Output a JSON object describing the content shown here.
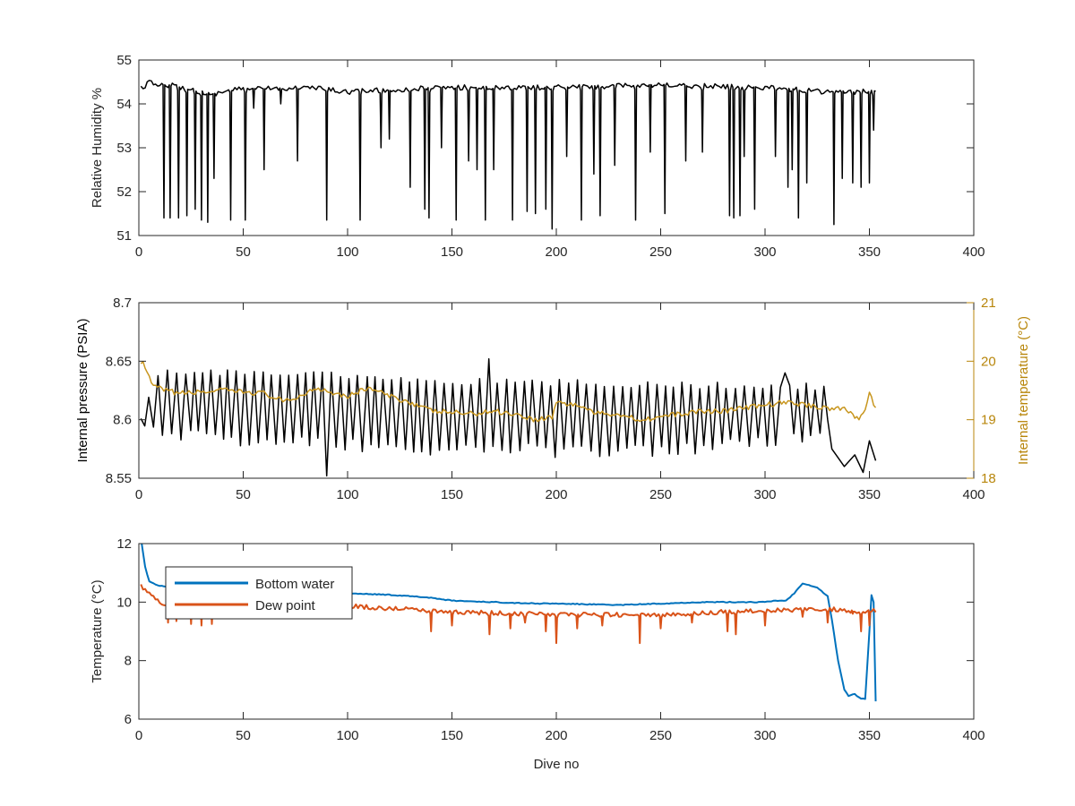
{
  "colors": {
    "black_series": "#000000",
    "internal_temperature": "#C8961E",
    "bottom_water": "#0072BD",
    "dew_point": "#D95319",
    "axis": "#262626",
    "right_axis": "#B8860B"
  },
  "chart_data": [
    {
      "type": "line",
      "xlabel": "",
      "ylabel": "Relative Humidity %",
      "xlim": [
        0,
        400
      ],
      "ylim": [
        51,
        55
      ],
      "xticks": [
        0,
        50,
        100,
        150,
        200,
        250,
        300,
        350,
        400
      ],
      "yticks": [
        51,
        52,
        53,
        54,
        55
      ],
      "grid": false,
      "series": [
        {
          "name": "",
          "color": "#000000",
          "x_range": [
            1,
            353
          ],
          "baseline": [
            [
              0,
              54.35
            ],
            [
              5,
              54.5
            ],
            [
              15,
              54.45
            ],
            [
              35,
              54.25
            ],
            [
              45,
              54.35
            ],
            [
              80,
              54.4
            ],
            [
              100,
              54.3
            ],
            [
              150,
              54.4
            ],
            [
              200,
              54.4
            ],
            [
              250,
              54.45
            ],
            [
              300,
              54.4
            ],
            [
              330,
              54.3
            ],
            [
              353,
              54.3
            ]
          ],
          "dips": [
            [
              12,
              51.4
            ],
            [
              15,
              51.4
            ],
            [
              19,
              51.4
            ],
            [
              23,
              51.45
            ],
            [
              27,
              51.6
            ],
            [
              30,
              51.35
            ],
            [
              33,
              51.3
            ],
            [
              36,
              52.3
            ],
            [
              44,
              51.35
            ],
            [
              51,
              51.35
            ],
            [
              55,
              53.9
            ],
            [
              60,
              52.5
            ],
            [
              68,
              54.0
            ],
            [
              76,
              52.7
            ],
            [
              90,
              51.35
            ],
            [
              106,
              51.35
            ],
            [
              116,
              53.0
            ],
            [
              120,
              53.2
            ],
            [
              130,
              52.1
            ],
            [
              137,
              51.6
            ],
            [
              139,
              51.4
            ],
            [
              145,
              53.0
            ],
            [
              152,
              51.35
            ],
            [
              158,
              52.7
            ],
            [
              162,
              52.5
            ],
            [
              166,
              51.35
            ],
            [
              170,
              52.5
            ],
            [
              179,
              51.35
            ],
            [
              186,
              51.55
            ],
            [
              190,
              51.5
            ],
            [
              195,
              51.6
            ],
            [
              198,
              51.15
            ],
            [
              205,
              52.8
            ],
            [
              212,
              51.35
            ],
            [
              218,
              52.4
            ],
            [
              221,
              51.45
            ],
            [
              228,
              52.6
            ],
            [
              238,
              51.35
            ],
            [
              245,
              52.9
            ],
            [
              252,
              51.5
            ],
            [
              262,
              52.7
            ],
            [
              270,
              52.9
            ],
            [
              283,
              51.45
            ],
            [
              285,
              51.4
            ],
            [
              288,
              51.45
            ],
            [
              290,
              52.8
            ],
            [
              295,
              51.6
            ],
            [
              305,
              52.8
            ],
            [
              311,
              52.1
            ],
            [
              313,
              52.5
            ],
            [
              316,
              51.4
            ],
            [
              320,
              52.2
            ],
            [
              333,
              51.25
            ],
            [
              337,
              52.3
            ],
            [
              342,
              52.2
            ],
            [
              346,
              52.1
            ],
            [
              350,
              52.2
            ],
            [
              352,
              53.4
            ]
          ]
        }
      ]
    },
    {
      "type": "line",
      "xlabel": "",
      "ylabel": "Internal pressure (PSIA)",
      "y2label": "Internal temperature (°C)",
      "xlim": [
        0,
        400
      ],
      "ylim": [
        8.55,
        8.7
      ],
      "y2lim": [
        18,
        21
      ],
      "xticks": [
        0,
        50,
        100,
        150,
        200,
        250,
        300,
        350,
        400
      ],
      "yticks": [
        8.55,
        8.6,
        8.65,
        8.7
      ],
      "y2ticks": [
        18,
        19,
        20,
        21
      ],
      "grid": false,
      "series": [
        {
          "name": "",
          "axis": "left",
          "color": "#000000",
          "x_range": [
            1,
            353
          ],
          "oscillation_period": 4.2,
          "top_trend": [
            [
              0,
              8.6
            ],
            [
              10,
              8.64
            ],
            [
              80,
              8.64
            ],
            [
              150,
              8.633
            ],
            [
              250,
              8.63
            ],
            [
              330,
              8.628
            ]
          ],
          "bottom_trend": [
            [
              0,
              8.59
            ],
            [
              10,
              8.587
            ],
            [
              80,
              8.58
            ],
            [
              150,
              8.575
            ],
            [
              250,
              8.572
            ],
            [
              330,
              8.585
            ]
          ],
          "spikes": [
            [
              83,
              8.667
            ],
            [
              85,
              8.66
            ],
            [
              90,
              8.552
            ],
            [
              168,
              8.652
            ],
            [
              310,
              8.64
            ]
          ],
          "tail": [
            [
              330,
              8.6
            ],
            [
              332,
              8.575
            ],
            [
              338,
              8.56
            ],
            [
              343,
              8.57
            ],
            [
              347,
              8.555
            ],
            [
              350,
              8.582
            ],
            [
              353,
              8.565
            ]
          ]
        },
        {
          "name": "",
          "axis": "right",
          "color": "#C8961E",
          "points": [
            [
              1,
              20.0
            ],
            [
              3,
              19.9
            ],
            [
              6,
              19.6
            ],
            [
              12,
              19.5
            ],
            [
              20,
              19.45
            ],
            [
              40,
              19.5
            ],
            [
              60,
              19.45
            ],
            [
              70,
              19.3
            ],
            [
              80,
              19.45
            ],
            [
              85,
              19.55
            ],
            [
              100,
              19.4
            ],
            [
              110,
              19.55
            ],
            [
              120,
              19.4
            ],
            [
              130,
              19.3
            ],
            [
              140,
              19.15
            ],
            [
              160,
              19.1
            ],
            [
              170,
              19.15
            ],
            [
              180,
              19.1
            ],
            [
              190,
              19.0
            ],
            [
              198,
              19.05
            ],
            [
              200,
              19.3
            ],
            [
              210,
              19.25
            ],
            [
              220,
              19.1
            ],
            [
              230,
              19.1
            ],
            [
              240,
              19.0
            ],
            [
              250,
              19.05
            ],
            [
              260,
              19.1
            ],
            [
              270,
              19.15
            ],
            [
              280,
              19.15
            ],
            [
              290,
              19.2
            ],
            [
              300,
              19.25
            ],
            [
              310,
              19.3
            ],
            [
              320,
              19.25
            ],
            [
              330,
              19.2
            ],
            [
              335,
              19.2
            ],
            [
              340,
              19.15
            ],
            [
              345,
              19.0
            ],
            [
              348,
              19.2
            ],
            [
              350,
              19.5
            ],
            [
              352,
              19.25
            ],
            [
              353,
              19.2
            ]
          ]
        }
      ]
    },
    {
      "type": "line",
      "xlabel": "Dive no",
      "ylabel": "Temperature (°C)",
      "xlim": [
        0,
        400
      ],
      "ylim": [
        6,
        12
      ],
      "xticks": [
        0,
        50,
        100,
        150,
        200,
        250,
        300,
        350,
        400
      ],
      "yticks": [
        6,
        8,
        10,
        12
      ],
      "grid": false,
      "legend_position": "top-left",
      "series": [
        {
          "name": "Bottom water",
          "color": "#0072BD",
          "points": [
            [
              1,
              12.2
            ],
            [
              3,
              11.2
            ],
            [
              5,
              10.7
            ],
            [
              10,
              10.55
            ],
            [
              20,
              10.5
            ],
            [
              35,
              10.45
            ],
            [
              40,
              11.2
            ],
            [
              42,
              10.9
            ],
            [
              45,
              10.5
            ],
            [
              60,
              10.45
            ],
            [
              80,
              10.4
            ],
            [
              100,
              10.3
            ],
            [
              120,
              10.25
            ],
            [
              140,
              10.15
            ],
            [
              150,
              10.05
            ],
            [
              170,
              10.0
            ],
            [
              190,
              9.95
            ],
            [
              200,
              9.95
            ],
            [
              230,
              9.9
            ],
            [
              250,
              9.95
            ],
            [
              270,
              10.0
            ],
            [
              290,
              10.0
            ],
            [
              300,
              10.0
            ],
            [
              305,
              10.05
            ],
            [
              310,
              10.05
            ],
            [
              314,
              10.3
            ],
            [
              318,
              10.65
            ],
            [
              325,
              10.5
            ],
            [
              330,
              10.2
            ],
            [
              332,
              9.4
            ],
            [
              335,
              8.0
            ],
            [
              338,
              7.0
            ],
            [
              340,
              6.8
            ],
            [
              343,
              6.85
            ],
            [
              346,
              6.7
            ],
            [
              348,
              6.7
            ],
            [
              350,
              9.0
            ],
            [
              351,
              10.25
            ],
            [
              352,
              10.0
            ],
            [
              353,
              6.6
            ]
          ]
        },
        {
          "name": "Dew point",
          "color": "#D95319",
          "x_range": [
            1,
            353
          ],
          "baseline": [
            [
              1,
              10.6
            ],
            [
              10,
              10.0
            ],
            [
              30,
              9.9
            ],
            [
              60,
              9.9
            ],
            [
              100,
              9.9
            ],
            [
              150,
              9.7
            ],
            [
              200,
              9.6
            ],
            [
              250,
              9.6
            ],
            [
              300,
              9.75
            ],
            [
              330,
              9.8
            ],
            [
              345,
              9.7
            ],
            [
              353,
              9.75
            ]
          ],
          "dips": [
            [
              14,
              9.3
            ],
            [
              18,
              9.35
            ],
            [
              25,
              9.25
            ],
            [
              30,
              9.2
            ],
            [
              35,
              9.25
            ],
            [
              140,
              9.0
            ],
            [
              150,
              9.2
            ],
            [
              168,
              8.9
            ],
            [
              178,
              9.1
            ],
            [
              185,
              9.3
            ],
            [
              195,
              9.0
            ],
            [
              200,
              8.6
            ],
            [
              210,
              9.1
            ],
            [
              222,
              9.2
            ],
            [
              240,
              8.6
            ],
            [
              250,
              9.1
            ],
            [
              265,
              9.3
            ],
            [
              282,
              9.0
            ],
            [
              286,
              8.9
            ],
            [
              300,
              9.2
            ],
            [
              318,
              9.5
            ],
            [
              330,
              9.3
            ],
            [
              342,
              9.6
            ],
            [
              346,
              9.0
            ],
            [
              350,
              9.2
            ]
          ]
        }
      ]
    }
  ]
}
